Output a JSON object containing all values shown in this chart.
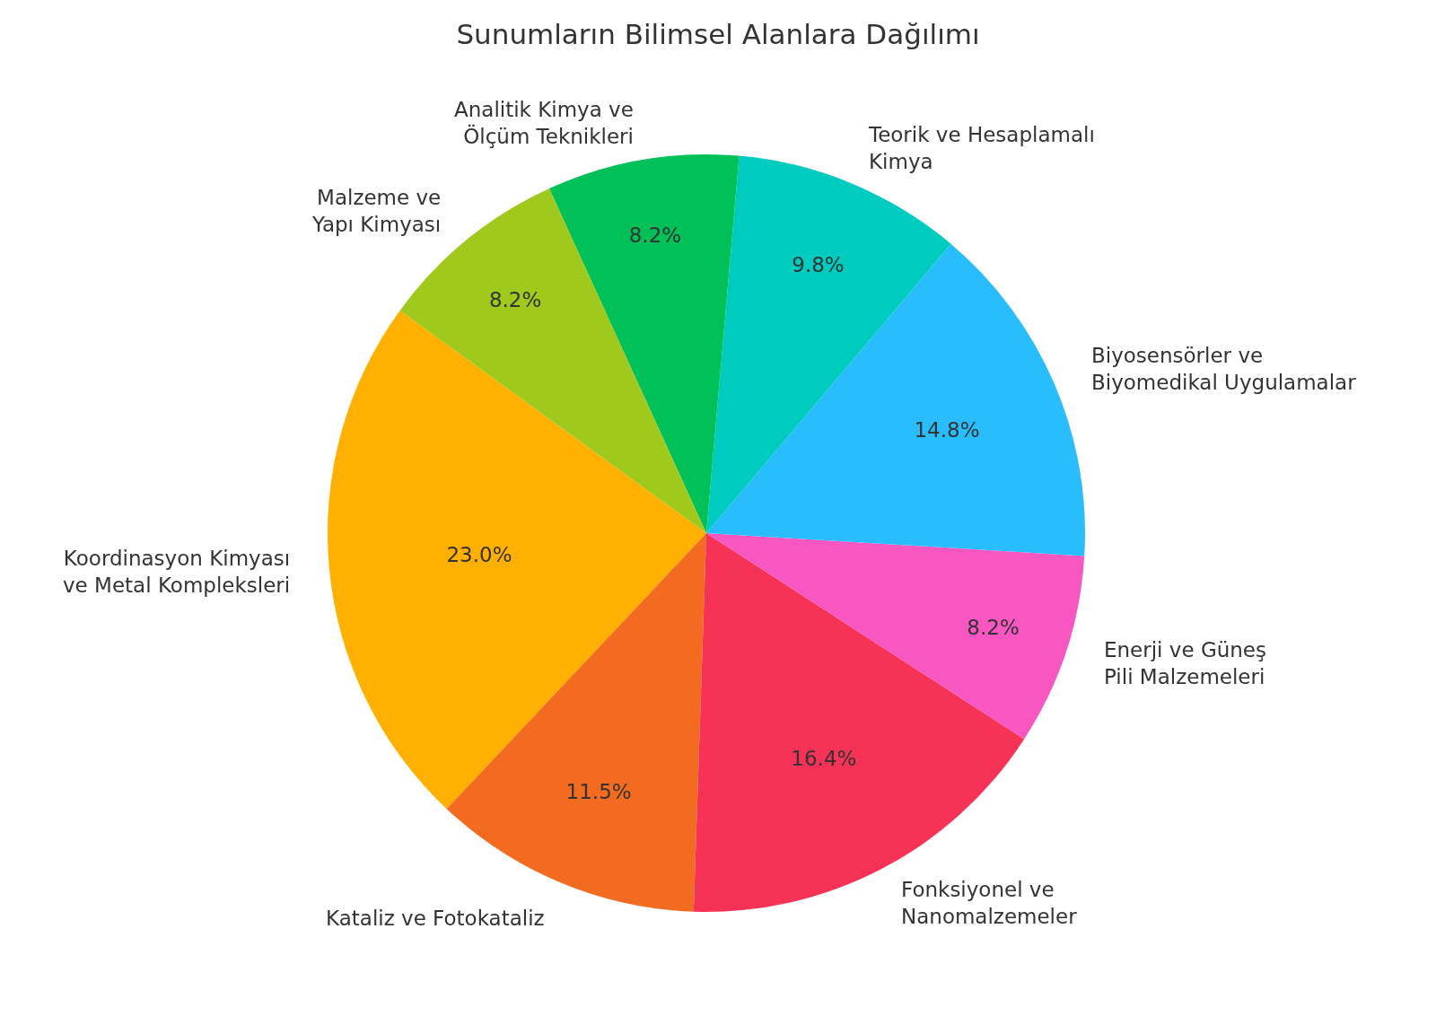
{
  "chart_data": {
    "type": "pie",
    "title": "Sunumların Bilimsel Alanlara Dağılımı",
    "categories": [
      "Koordinasyon Kimyası\nve Metal Kompleksleri",
      "Kataliz ve Fotokataliz",
      "Fonksiyonel ve\nNanomalzemeler",
      "Enerji ve Güneş\nPili Malzemeleri",
      "Biyosensörler ve\nBiyomedikal Uygulamalar",
      "Teorik ve Hesaplamalı\nKimya",
      "Analitik Kimya ve\nÖlçüm Teknikleri",
      "Malzeme ve\nYapı Kimyası"
    ],
    "values": [
      23.0,
      11.5,
      16.4,
      8.2,
      14.8,
      9.8,
      8.2,
      8.2
    ],
    "value_labels": [
      "23.0%",
      "11.5%",
      "16.4%",
      "8.2%",
      "14.8%",
      "9.8%",
      "8.2%",
      "8.2%"
    ],
    "colors": [
      "#ffb000",
      "#f26b21",
      "#f63356",
      "#f857c1",
      "#29bdfd",
      "#00cbbf",
      "#01c057",
      "#a0c91e"
    ],
    "legend": false
  }
}
